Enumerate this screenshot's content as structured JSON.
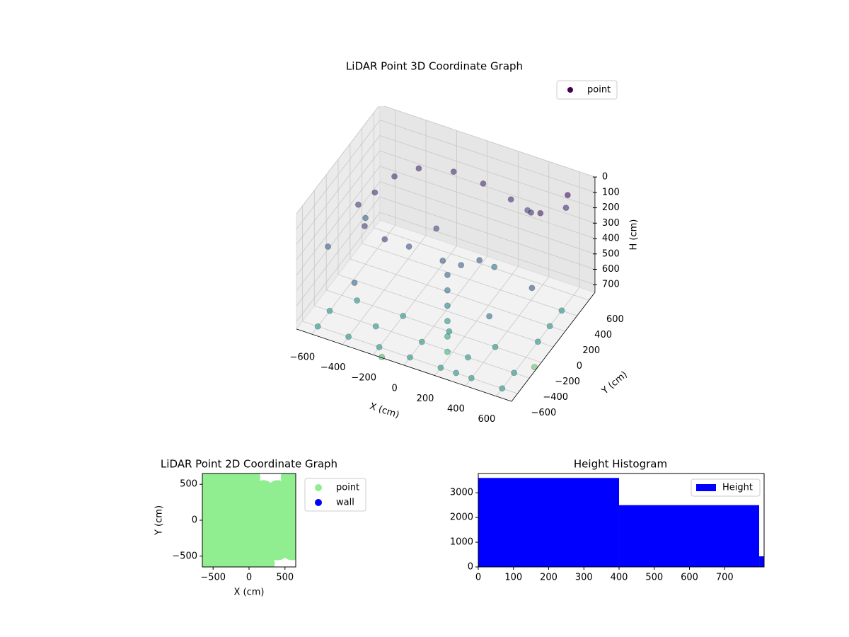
{
  "chart_data": [
    {
      "type": "scatter3d",
      "title": "LiDAR Point 3D Coordinate Graph",
      "xlabel": "X (cm)",
      "ylabel": "Y (cm)",
      "zlabel": "H (cm)",
      "xlim": [
        -700,
        700
      ],
      "ylim": [
        -700,
        700
      ],
      "zlim": [
        0,
        750
      ],
      "z_inverted": true,
      "xticks": [
        {
          "value": -600,
          "label": "−600"
        },
        {
          "value": -400,
          "label": "−400"
        },
        {
          "value": -200,
          "label": "−200"
        },
        0,
        200,
        400,
        600
      ],
      "yticks": [
        {
          "value": -600,
          "label": "−600"
        },
        {
          "value": -400,
          "label": "−400"
        },
        {
          "value": -200,
          "label": "−200"
        },
        0,
        200,
        400,
        600
      ],
      "zticks": [
        0,
        100,
        200,
        300,
        400,
        500,
        600,
        700
      ],
      "colormap": "viridis",
      "clim": [
        0,
        1400
      ],
      "grid": true,
      "legend": "upper right",
      "series": [
        {
          "name": "point",
          "color": "#440154",
          "x": [
            -500,
            -450,
            -350,
            -150,
            50,
            250,
            400,
            -550,
            -450,
            -300,
            -200,
            0,
            100,
            200,
            -100,
            50,
            50,
            50,
            50,
            50,
            50,
            500,
            600,
            -650,
            300,
            400,
            -400,
            600,
            200,
            -600,
            550,
            -600,
            -400,
            -200,
            0,
            200,
            400,
            600,
            -600,
            -300,
            0,
            300,
            600,
            -500,
            -200,
            100,
            400,
            600,
            600,
            600,
            300,
            -300,
            500
          ],
          "y": [
            100,
            300,
            450,
            520,
            500,
            450,
            400,
            -50,
            -200,
            -250,
            -100,
            -50,
            0,
            50,
            100,
            -100,
            -100,
            -100,
            -100,
            -100,
            -100,
            300,
            500,
            -300,
            600,
            -300,
            -500,
            -100,
            300,
            200,
            600,
            -600,
            -600,
            -600,
            -600,
            -600,
            -600,
            -600,
            -400,
            -400,
            -400,
            -400,
            -400,
            -200,
            -200,
            -200,
            -200,
            0,
            200,
            400,
            -600,
            -300,
            200
          ],
          "h": [
            200,
            180,
            170,
            160,
            160,
            170,
            180,
            220,
            250,
            260,
            350,
            400,
            420,
            380,
            300,
            450,
            550,
            650,
            750,
            850,
            950,
            100,
            50,
            400,
            300,
            500,
            450,
            350,
            550,
            450,
            200,
            750,
            750,
            750,
            750,
            750,
            750,
            750,
            750,
            750,
            750,
            750,
            750,
            750,
            750,
            750,
            750,
            750,
            750,
            750,
            750,
            1000,
            1050
          ]
        }
      ]
    },
    {
      "type": "scatter",
      "title": "LiDAR Point 2D Coordinate Graph",
      "xlabel": "X (cm)",
      "ylabel": "Y (cm)",
      "xlim": [
        -650,
        650
      ],
      "ylim": [
        -650,
        650
      ],
      "xticks": [
        {
          "value": -500,
          "label": "−500"
        },
        0,
        500
      ],
      "yticks": [
        {
          "value": -500,
          "label": "−500"
        },
        0,
        500
      ],
      "legend": "outside right",
      "series": [
        {
          "name": "point",
          "color": "#90ee90",
          "x": [
            -600,
            -400,
            -200,
            0,
            600,
            -600,
            -400,
            -200,
            0,
            200,
            400,
            600,
            -600,
            -400,
            -200,
            0,
            200,
            400,
            600,
            -600,
            -400,
            -200,
            0,
            200,
            400,
            600,
            -600,
            -400,
            -200,
            0,
            200,
            400,
            600,
            -600,
            -400,
            -200,
            0,
            200,
            400,
            600,
            -600,
            -400,
            -200,
            0,
            200
          ],
          "y": [
            600,
            600,
            600,
            600,
            600,
            400,
            400,
            400,
            400,
            400,
            400,
            400,
            200,
            200,
            200,
            200,
            200,
            200,
            200,
            0,
            0,
            0,
            0,
            0,
            0,
            0,
            -200,
            -200,
            -200,
            -200,
            -200,
            -200,
            -200,
            -400,
            -400,
            -400,
            -400,
            -400,
            -400,
            -400,
            -600,
            -600,
            -600,
            -600,
            -600
          ]
        },
        {
          "name": "wall",
          "color": "#0000ff",
          "x": [],
          "y": []
        }
      ]
    },
    {
      "type": "histogram",
      "title": "Height Histogram",
      "bins": [
        0,
        400,
        798,
        812
      ],
      "values": [
        3600,
        2500,
        430
      ],
      "series_name": "Height",
      "color": "#0000ff",
      "xlim": [
        0,
        812
      ],
      "ylim": [
        0,
        3780
      ],
      "xticks": [
        0,
        100,
        200,
        300,
        400,
        500,
        600,
        700
      ],
      "yticks": [
        0,
        1000,
        2000,
        3000
      ],
      "legend": "upper right"
    }
  ]
}
